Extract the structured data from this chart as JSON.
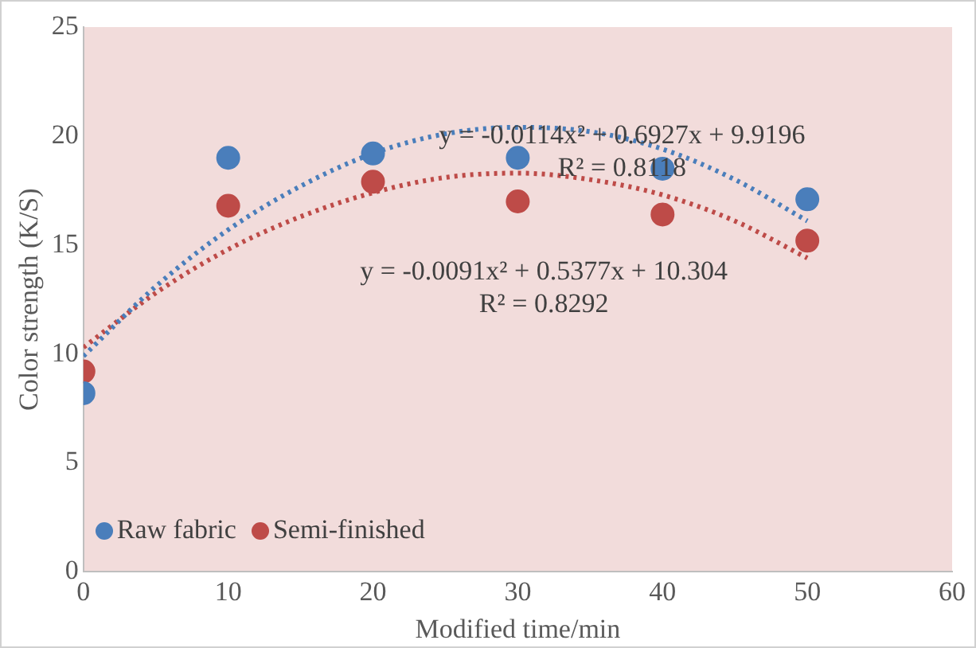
{
  "chart_data": {
    "type": "scatter",
    "xlabel": "Modified time/min",
    "ylabel": "Color strength (K/S)",
    "xlim": [
      0,
      60
    ],
    "xticks": [
      0,
      10,
      20,
      30,
      40,
      50,
      60
    ],
    "ylim": [
      0,
      25
    ],
    "yticks": [
      0,
      5,
      10,
      15,
      20,
      25
    ],
    "grid": false,
    "legend": "bottom left",
    "marker": "circle",
    "series": [
      {
        "name": "Raw fabric",
        "color": "#4a7ebb",
        "x": [
          0,
          10,
          20,
          30,
          40,
          50
        ],
        "values": [
          8.2,
          19.0,
          19.2,
          19.0,
          18.5,
          17.1
        ]
      },
      {
        "name": "Semi-finished",
        "color": "#be4b48",
        "x": [
          0,
          10,
          20,
          30,
          40,
          50
        ],
        "values": [
          9.2,
          16.8,
          17.9,
          17.0,
          16.4,
          15.2
        ]
      },
      {
        "type": "line",
        "color": "#4a7ebb",
        "line_style": "dotted",
        "marker": "none",
        "x": [
          0,
          5,
          10,
          15,
          20,
          25,
          30,
          35,
          40,
          45,
          50
        ],
        "values": [
          9.9,
          13.1,
          15.7,
          17.7,
          19.2,
          20.1,
          20.4,
          20.2,
          19.4,
          18.0,
          16.1
        ]
      },
      {
        "type": "line",
        "color": "#be4b48",
        "line_style": "dotted",
        "marker": "none",
        "x": [
          0,
          5,
          10,
          15,
          20,
          25,
          30,
          35,
          40,
          45,
          50
        ],
        "values": [
          10.3,
          12.8,
          14.8,
          16.3,
          17.4,
          18.1,
          18.3,
          18.0,
          17.3,
          16.1,
          14.4
        ]
      }
    ],
    "annotations": [
      "y = -0.0114x² + 0.6927x + 9.9196",
      "R² = 0.8118",
      "y = -0.0091x² + 0.5377x + 10.304",
      "R² = 0.8292"
    ]
  }
}
